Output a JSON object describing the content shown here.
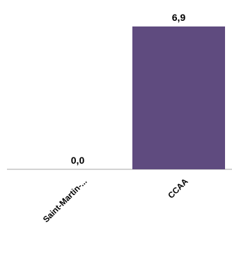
{
  "chart_data": {
    "type": "bar",
    "categories": [
      "Saint-Martin-...",
      "CCAA"
    ],
    "values": [
      0.0,
      6.9
    ],
    "value_labels": [
      "0,0",
      "6,9"
    ],
    "title": "",
    "xlabel": "",
    "ylabel": "",
    "ylim": [
      0,
      6.9
    ],
    "grid": false,
    "legend": "none",
    "colors": {
      "bar": "#5f4b7f",
      "axis": "#a6a6a6",
      "text": "#000000"
    }
  }
}
